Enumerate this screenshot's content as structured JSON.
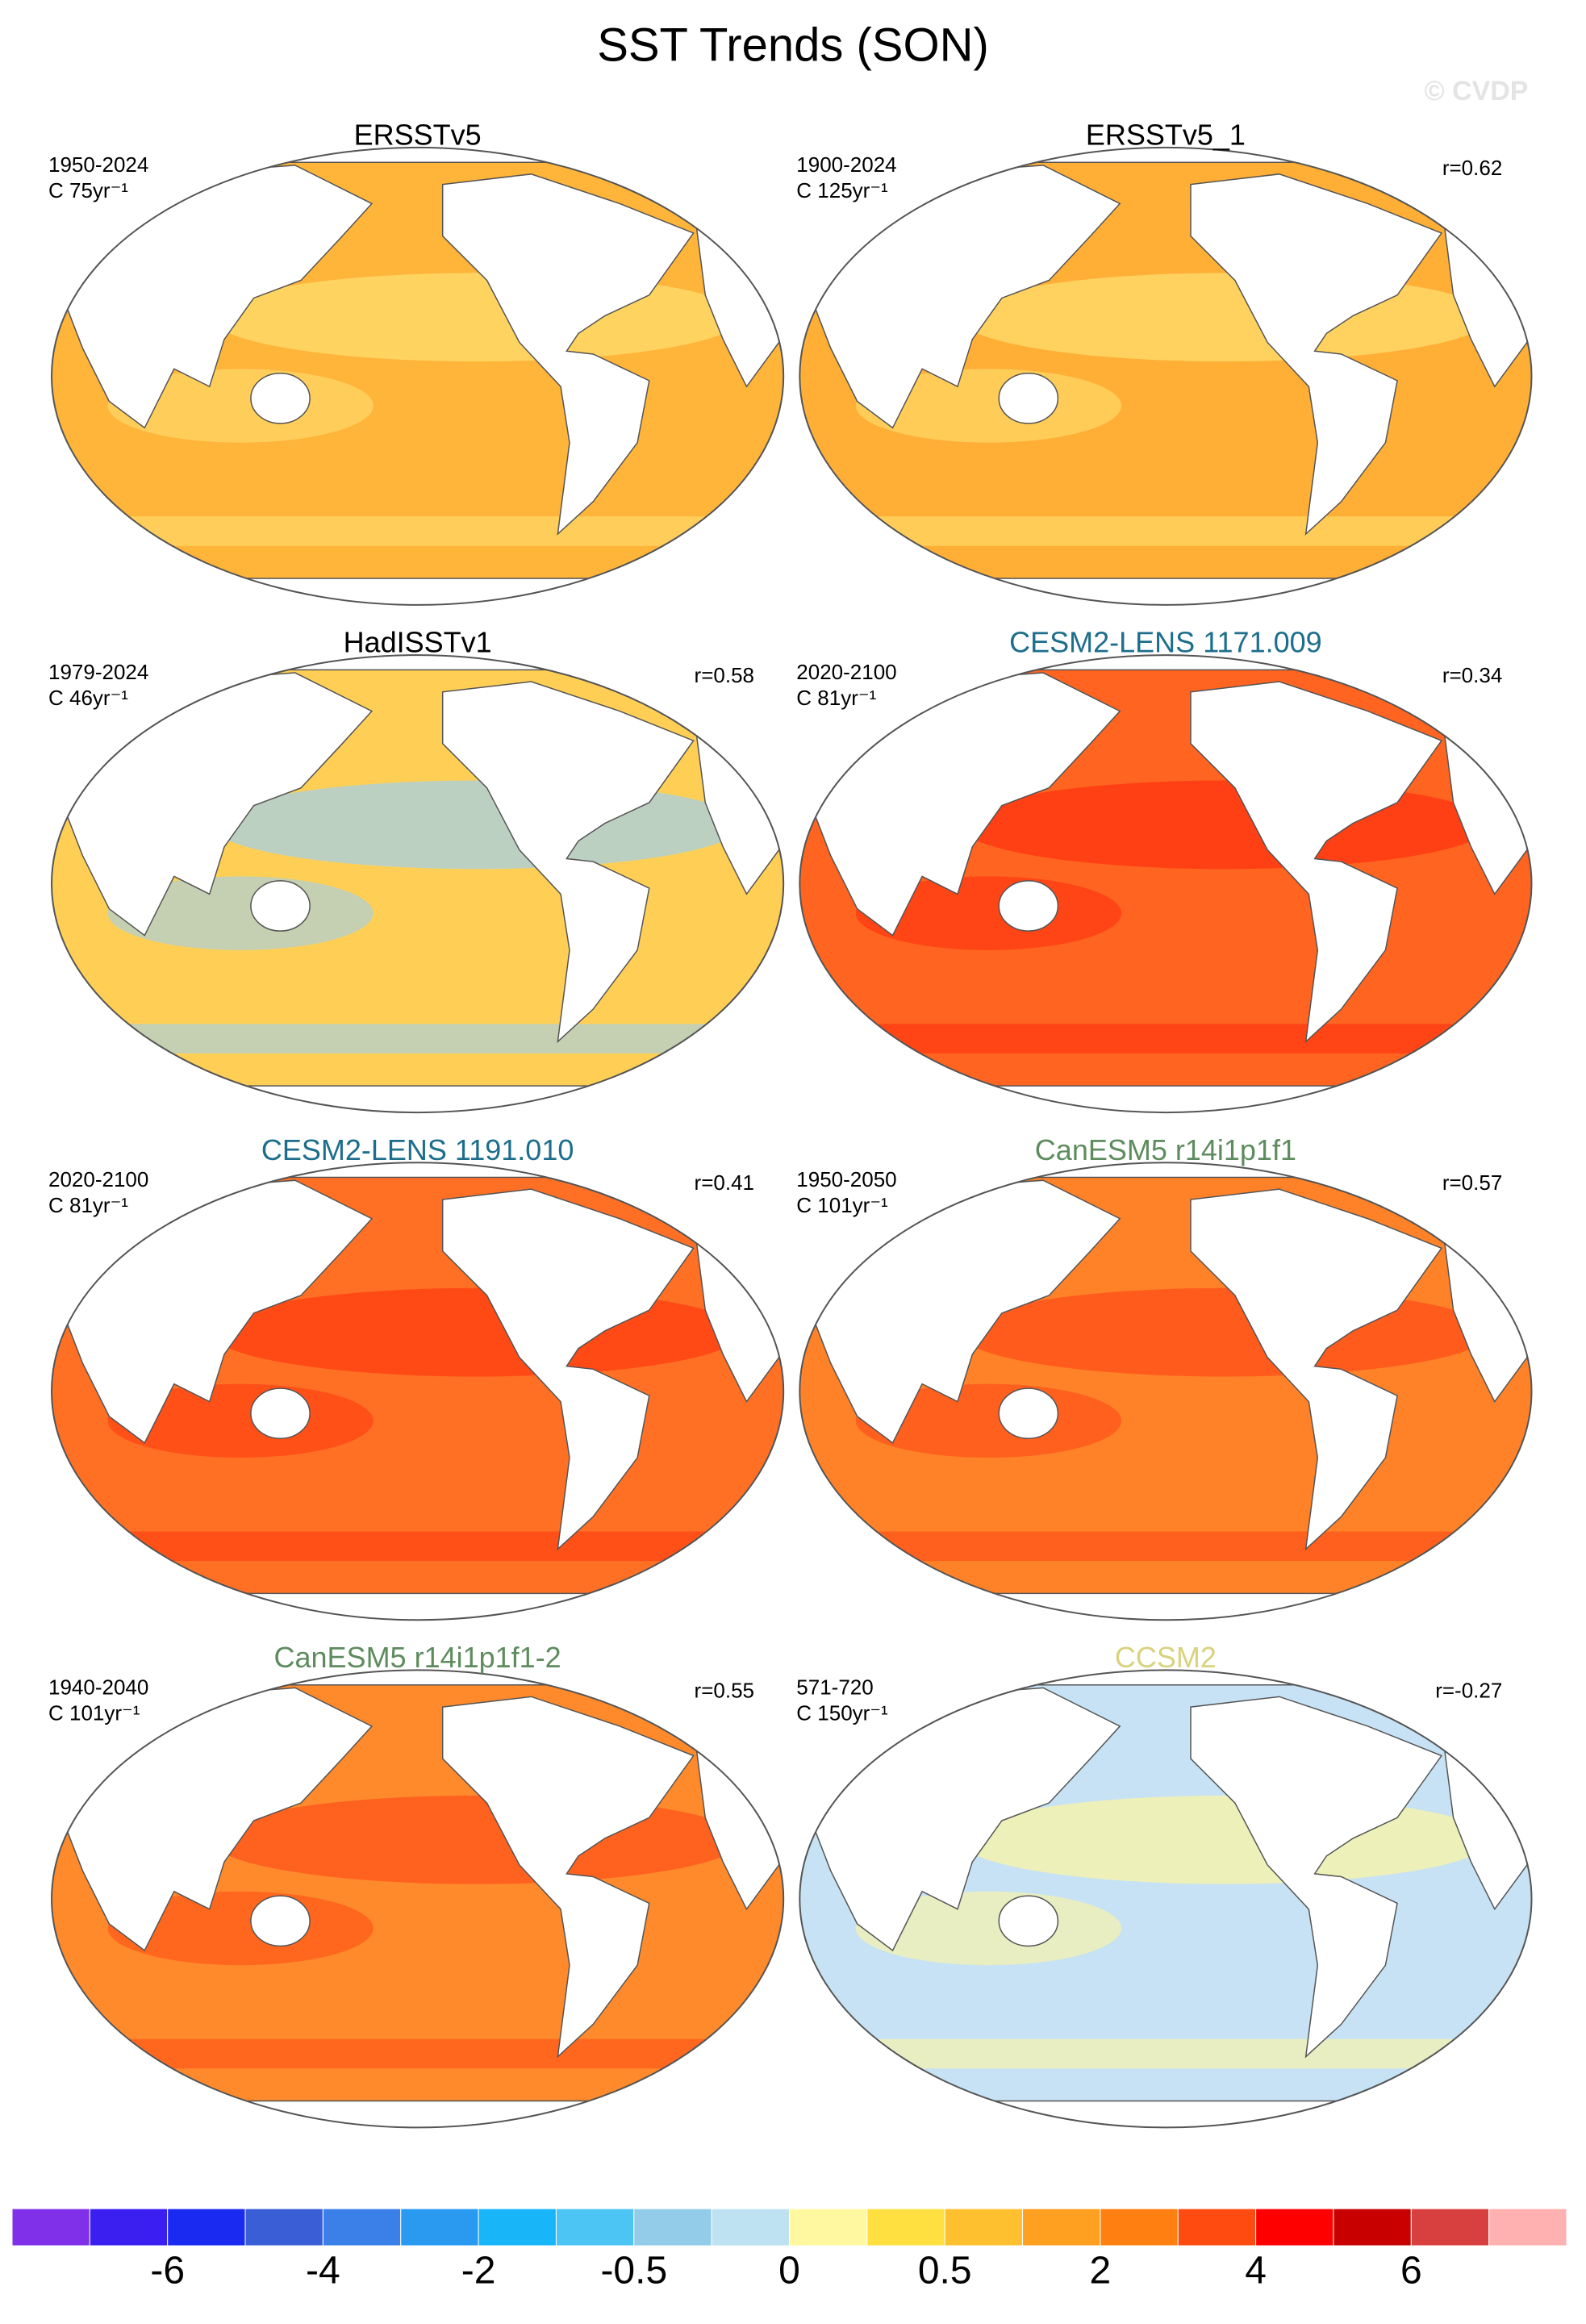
{
  "title": "SST Trends (SON)",
  "watermark": "© CVDP",
  "panels": [
    {
      "title": "ERSSTv5",
      "title_color": "#000000",
      "period": "1950-2024",
      "units": "C 75yr⁻¹"
    },
    {
      "title": "ERSSTv5_1",
      "title_color": "#000000",
      "period": "1900-2024",
      "units": "C 125yr⁻¹",
      "r": "r=0.62"
    },
    {
      "title": "HadISSTv1",
      "title_color": "#000000",
      "period": "1979-2024",
      "units": "C 46yr⁻¹",
      "r": "r=0.58"
    },
    {
      "title": "CESM2-LENS 1171.009",
      "title_color": "#1d6e8c",
      "period": "2020-2100",
      "units": "C 81yr⁻¹",
      "r": "r=0.34"
    },
    {
      "title": "CESM2-LENS 1191.010",
      "title_color": "#1d6e8c",
      "period": "2020-2100",
      "units": "C 81yr⁻¹",
      "r": "r=0.41"
    },
    {
      "title": "CanESM5 r14i1p1f1",
      "title_color": "#5e8c5e",
      "period": "1950-2050",
      "units": "C 101yr⁻¹",
      "r": "r=0.57"
    },
    {
      "title": "CanESM5 r14i1p1f1-2",
      "title_color": "#5e8c5e",
      "period": "1940-2040",
      "units": "C 101yr⁻¹",
      "r": "r=0.55"
    },
    {
      "title": "CCSM2",
      "title_color": "#d9d27e",
      "period": "571-720",
      "units": "C 150yr⁻¹",
      "r": "r=-0.27"
    }
  ],
  "colorbar": {
    "colors": [
      "#8030e8",
      "#3a1ff0",
      "#1a2af0",
      "#3a5ed6",
      "#3a80e8",
      "#2a9af0",
      "#18b6f8",
      "#4cc4f4",
      "#92cce8",
      "#bfe2f2",
      "#fff8a0",
      "#ffe040",
      "#ffc030",
      "#ffa020",
      "#ff8010",
      "#ff4a10",
      "#ff0000",
      "#c80000",
      "#d84040",
      "#ffb0b0"
    ],
    "labels": [
      -6,
      -4,
      -2,
      -0.5,
      0,
      0.5,
      2,
      4,
      6
    ]
  }
}
